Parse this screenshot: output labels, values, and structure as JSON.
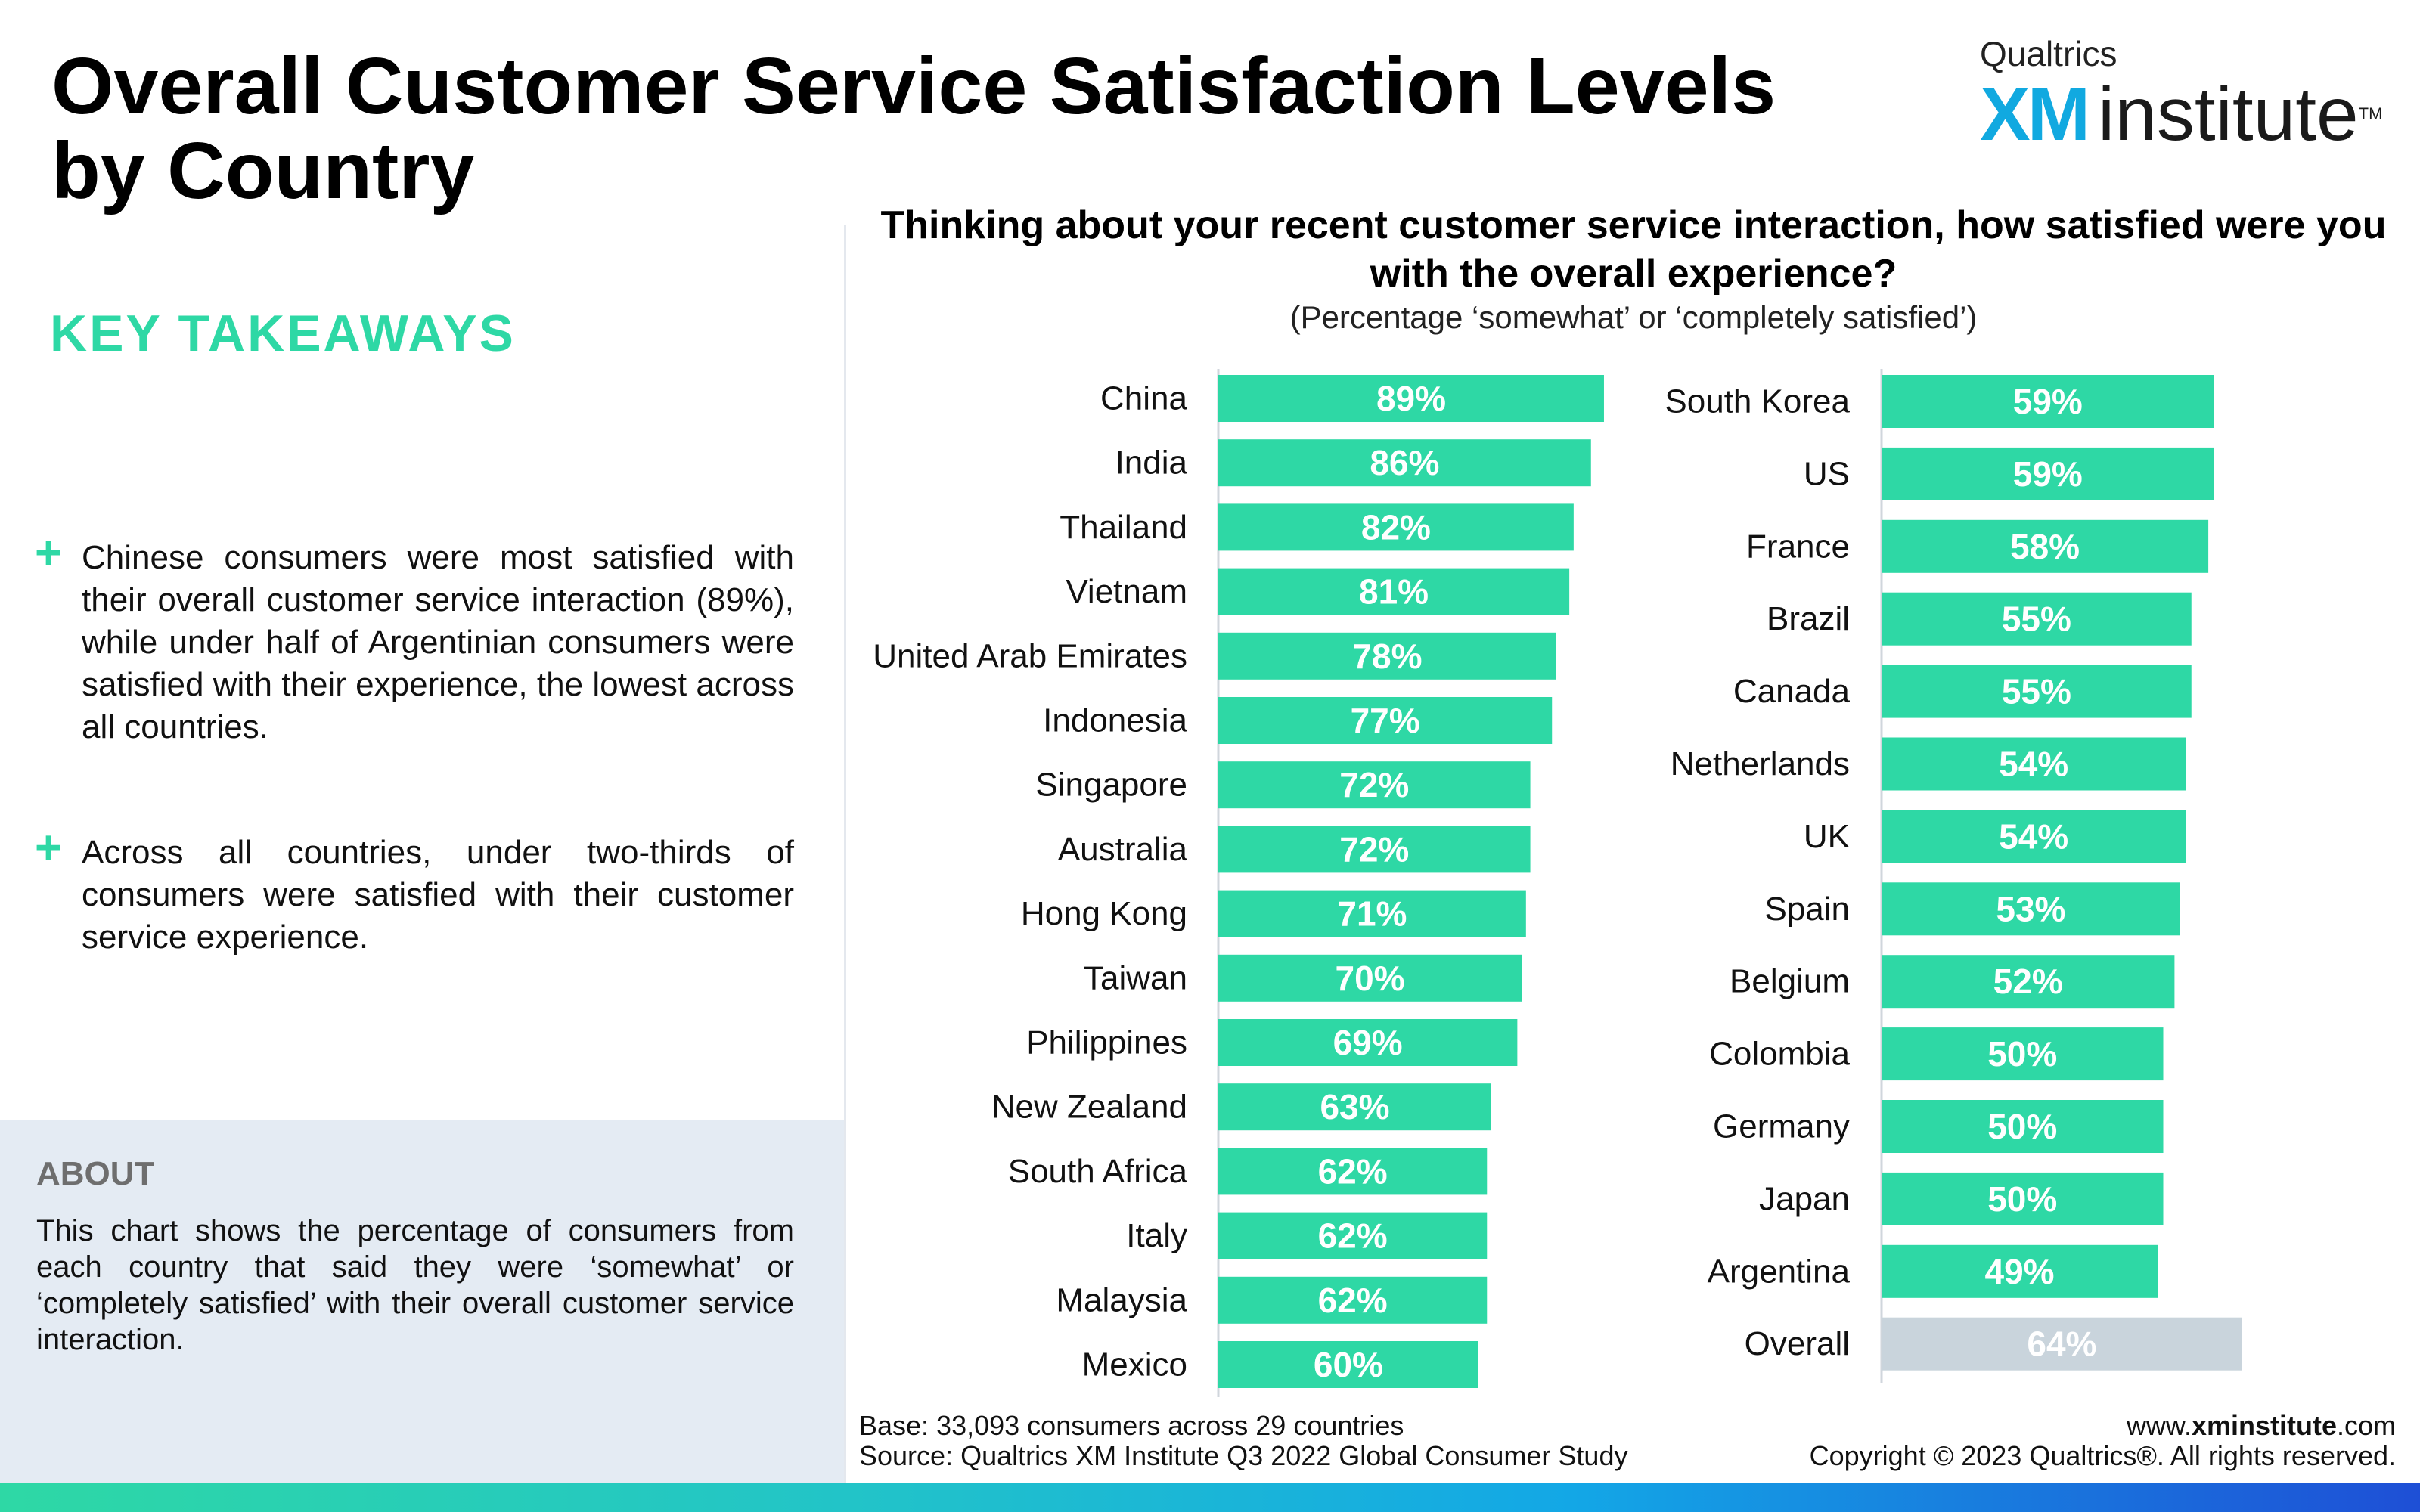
{
  "title": "Overall Customer Service Satisfaction Levels by Country",
  "logo": {
    "top": "Qualtrics",
    "xm": "XM",
    "institute": "institute",
    "tm": "TM"
  },
  "takeaways": {
    "heading": "KEY TAKEAWAYS",
    "bullets": [
      "Chinese consumers were most satisfied with their overall customer service interaction (89%), while under half of Argentinian consumers were satisfied with their experience, the lowest across all countries.",
      "Across all countries, under two-thirds of consumers were satisfied with their customer service experience."
    ]
  },
  "about": {
    "heading": "ABOUT",
    "text": "This chart shows the percentage of consumers from each country that said they were ‘somewhat’ or ‘completely satisfied’ with their overall customer service interaction."
  },
  "question": {
    "text": "Thinking about your recent customer service interaction, how satisfied were you with the overall experience?",
    "subtitle": "(Percentage ‘somewhat’ or ‘completely satisfied’)"
  },
  "colors": {
    "bar": "#2ed8a5",
    "overall_bar": "#c9d4dc",
    "label": "#ffffff",
    "axis": "#d0d6dc"
  },
  "chart_data": [
    {
      "type": "bar",
      "orientation": "horizontal",
      "xlim": [
        0,
        100
      ],
      "unit": "%",
      "categories": [
        "China",
        "India",
        "Thailand",
        "Vietnam",
        "United Arab Emirates",
        "Indonesia",
        "Singapore",
        "Australia",
        "Hong Kong",
        "Taiwan",
        "Philippines",
        "New Zealand",
        "South Africa",
        "Italy",
        "Malaysia",
        "Mexico"
      ],
      "values": [
        89,
        86,
        82,
        81,
        78,
        77,
        72,
        72,
        71,
        70,
        69,
        63,
        62,
        62,
        62,
        60
      ]
    },
    {
      "type": "bar",
      "orientation": "horizontal",
      "xlim": [
        0,
        100
      ],
      "unit": "%",
      "categories": [
        "South Korea",
        "US",
        "France",
        "Brazil",
        "Canada",
        "Netherlands",
        "UK",
        "Spain",
        "Belgium",
        "Colombia",
        "Germany",
        "Japan",
        "Argentina",
        "Overall"
      ],
      "values": [
        59,
        59,
        58,
        55,
        55,
        54,
        54,
        53,
        52,
        50,
        50,
        50,
        49,
        64
      ],
      "highlight": "Overall"
    }
  ],
  "footer": {
    "base": "Base: 33,093 consumers across 29 countries",
    "source": "Source: Qualtrics XM Institute Q3 2022 Global Consumer Study",
    "url_prefix": "www.",
    "url_bold": "xminstitute",
    "url_suffix": ".com",
    "copyright": "Copyright © 2023 Qualtrics®. All rights reserved."
  }
}
